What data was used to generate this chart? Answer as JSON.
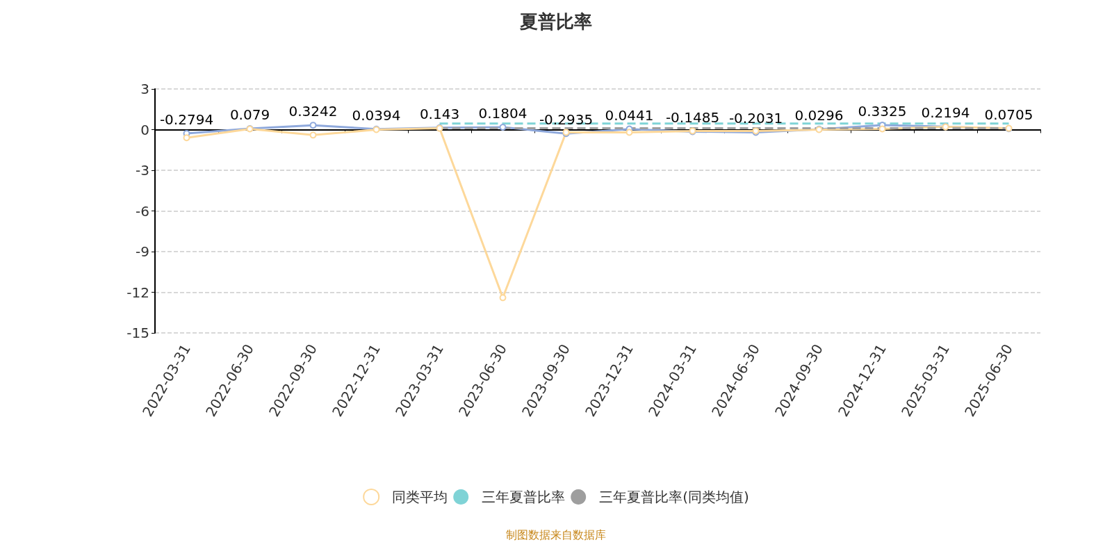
{
  "chart_data": {
    "type": "line",
    "title": "夏普比率",
    "categories": [
      "2022-03-31",
      "2022-06-30",
      "2022-09-30",
      "2022-12-31",
      "2023-03-31",
      "2023-06-30",
      "2023-09-30",
      "2023-12-31",
      "2024-03-31",
      "2024-06-30",
      "2024-09-30",
      "2024-12-31",
      "2025-03-31",
      "2025-06-30"
    ],
    "series": [
      {
        "color": "#8fa9dc",
        "values": [
          -0.2794,
          0.079,
          0.3242,
          0.0394,
          0.143,
          0.1804,
          -0.2935,
          0.0441,
          -0.1485,
          -0.2031,
          0.0296,
          0.3325,
          0.2194,
          0.0705
        ],
        "value_labels": [
          "-0.2794",
          "0.079",
          "0.3242",
          "0.0394",
          "0.143",
          "0.1804",
          "-0.2935",
          "0.0441",
          "-0.1485",
          "-0.2031",
          "0.0296",
          "0.3325",
          "0.2194",
          "0.0705"
        ],
        "marker": "circle"
      },
      {
        "name": "同类平均",
        "color": "#fdd89a",
        "values": [
          -0.6,
          0.05,
          -0.4,
          0.0,
          0.1,
          -12.4,
          -0.2,
          -0.2,
          -0.1,
          -0.1,
          0.0,
          0.05,
          0.2,
          0.1
        ],
        "marker": "circle"
      },
      {
        "name": "三年夏普比率",
        "color": "#7fd3d6",
        "values": [
          null,
          null,
          null,
          null,
          0.45,
          0.45,
          0.45,
          0.45,
          0.45,
          0.45,
          0.45,
          0.45,
          0.45,
          0.45
        ],
        "line_style": "dashed",
        "marker": "none"
      },
      {
        "name": "三年夏普比率(同类均值)",
        "color": "#9e9e9e",
        "values": [
          null,
          null,
          null,
          null,
          0.1,
          0.1,
          0.1,
          0.1,
          0.1,
          0.1,
          0.1,
          0.1,
          0.1,
          0.1
        ],
        "line_style": "dashed",
        "marker": "none"
      }
    ],
    "ylim": [
      -15,
      3
    ],
    "yticks": [
      -15,
      -12,
      -9,
      -6,
      -3,
      0,
      3
    ],
    "grid": "y",
    "legend": "bottom",
    "annotations": [
      "制图数据来自数据库"
    ]
  }
}
